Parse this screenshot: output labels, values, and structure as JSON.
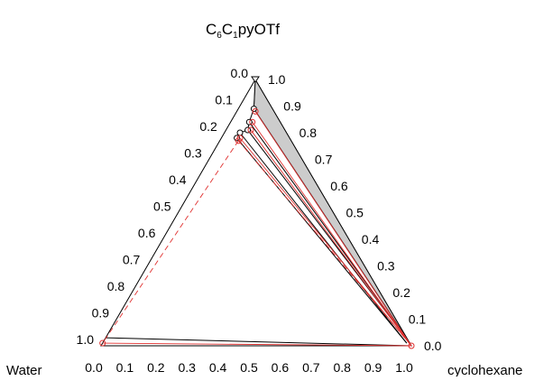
{
  "chart_data": {
    "type": "ternary",
    "title_parts": {
      "p1": "C",
      "s1": "6",
      "p2": "C",
      "s2": "1",
      "p3": "pyOTf"
    },
    "vertices": {
      "top": "C6C1pyOTf",
      "left": "Water",
      "right": "cyclohexane"
    },
    "corner_labels": {
      "left": "Water",
      "right": "cyclohexane"
    },
    "ticks": {
      "left_edge": [
        "0.0",
        "0.1",
        "0.2",
        "0.3",
        "0.4",
        "0.5",
        "0.6",
        "0.7",
        "0.8",
        "0.9",
        "1.0"
      ],
      "right_edge": [
        "1.0",
        "0.9",
        "0.8",
        "0.7",
        "0.6",
        "0.5",
        "0.4",
        "0.3",
        "0.2",
        "0.1",
        "0.0"
      ],
      "bottom_edge": [
        "0.0",
        "0.1",
        "0.2",
        "0.3",
        "0.4",
        "0.5",
        "0.6",
        "0.7",
        "0.8",
        "0.9",
        "1.0"
      ]
    },
    "series": [
      {
        "kind": "experimental",
        "color": "#000000",
        "binodal_ionic_liquid_rich": [
          {
            "water": 0.0,
            "cyclohexane": 0.0,
            "il": 1.0
          },
          {
            "water": 0.06,
            "cyclohexane": 0.05,
            "il": 0.89
          },
          {
            "water": 0.1,
            "cyclohexane": 0.06,
            "il": 0.84
          },
          {
            "water": 0.12,
            "cyclohexane": 0.07,
            "il": 0.81
          },
          {
            "water": 0.15,
            "cyclohexane": 0.05,
            "il": 0.8
          },
          {
            "water": 0.17,
            "cyclohexane": 0.05,
            "il": 0.78
          }
        ],
        "tie_lines": [
          {
            "from": {
              "water": 0.06,
              "cyclohexane": 0.05
            },
            "to": {
              "water": 0.0,
              "cyclohexane": 0.99
            }
          },
          {
            "from": {
              "water": 0.1,
              "cyclohexane": 0.06
            },
            "to": {
              "water": 0.0,
              "cyclohexane": 0.99
            }
          },
          {
            "from": {
              "water": 0.12,
              "cyclohexane": 0.07
            },
            "to": {
              "water": 0.0,
              "cyclohexane": 0.99
            }
          },
          {
            "from": {
              "water": 0.15,
              "cyclohexane": 0.05
            },
            "to": {
              "water": 0.01,
              "cyclohexane": 0.98
            }
          },
          {
            "from": {
              "water": 0.17,
              "cyclohexane": 0.05
            },
            "to": {
              "water": 0.01,
              "cyclohexane": 0.98
            }
          },
          {
            "from": {
              "water": 0.97,
              "cyclohexane": 0.0
            },
            "to": {
              "water": 0.0,
              "cyclohexane": 1.0
            }
          }
        ]
      },
      {
        "kind": "model",
        "color": "#e0302f",
        "points": [
          {
            "water": 0.06,
            "cyclohexane": 0.06
          },
          {
            "water": 0.09,
            "cyclohexane": 0.07
          },
          {
            "water": 0.11,
            "cyclohexane": 0.08
          },
          {
            "water": 0.16,
            "cyclohexane": 0.06
          },
          {
            "water": 0.17,
            "cyclohexane": 0.06
          },
          {
            "water": 0.99,
            "cyclohexane": 0.0
          },
          {
            "water": 0.0,
            "cyclohexane": 1.0
          }
        ]
      }
    ],
    "shaded_region": {
      "color": "#cccccc",
      "vertices": [
        {
          "water": 0.0,
          "cyclohexane": 0.0
        },
        {
          "water": 0.0,
          "cyclohexane": 1.0
        },
        {
          "water": 0.06,
          "cyclohexane": 0.05
        }
      ]
    }
  }
}
